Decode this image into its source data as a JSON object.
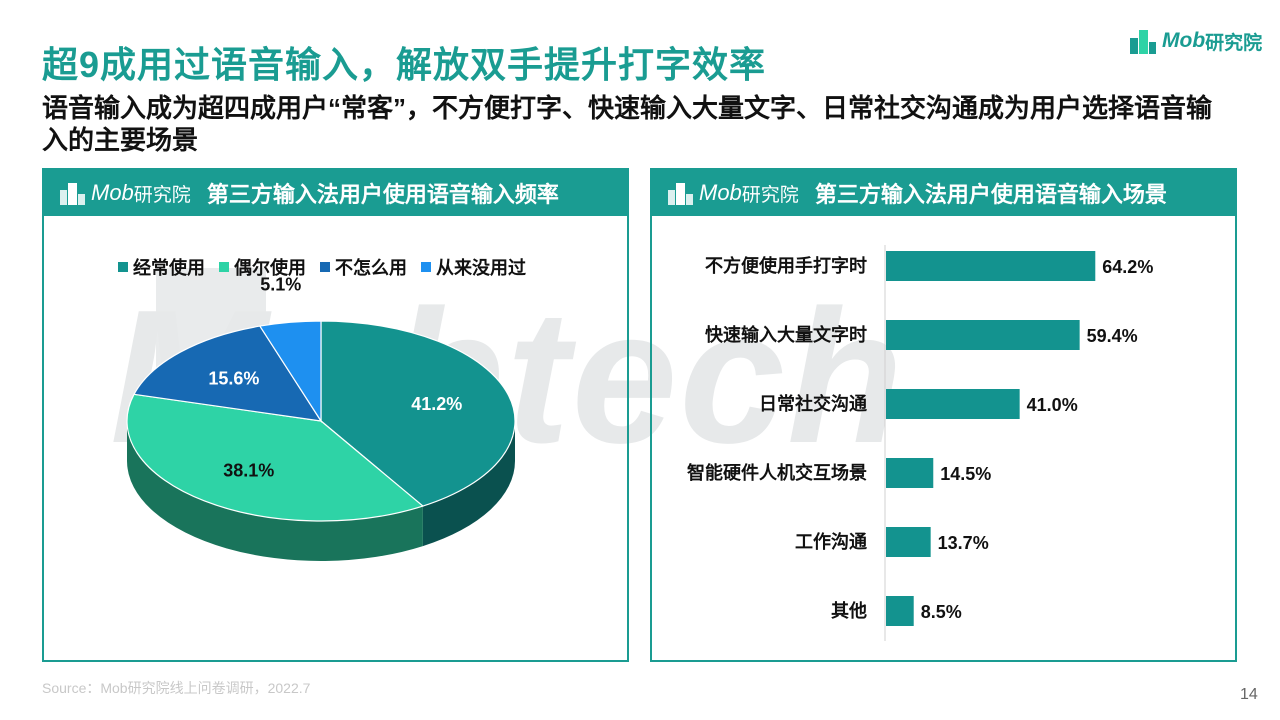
{
  "header": {
    "title": "超9成用过语音输入，解放双手提升打字效率",
    "subtitle": "语音输入成为超四成用户“常客”，不方便打字、快速输入大量文字、日常社交沟通成为用户选择语音输入的主要场景",
    "brand_en": "Mob",
    "brand_cn": "研究院"
  },
  "watermark": "Mobtech",
  "colors": {
    "accent": "#1a9c92",
    "often": "#13938f",
    "sometimes": "#2ed3a6",
    "rarely": "#1769b3",
    "never": "#1e90f0",
    "bar": "#13938f"
  },
  "panels": {
    "left": {
      "logo_en": "Mob",
      "logo_cn": "研究院",
      "title": "第三方输入法用户使用语音输入频率"
    },
    "right": {
      "logo_en": "Mob",
      "logo_cn": "研究院",
      "title": "第三方输入法用户使用语音输入场景"
    }
  },
  "chart_data": [
    {
      "type": "pie",
      "title": "第三方输入法用户使用语音输入频率",
      "legend_position": "top",
      "series": [
        {
          "name": "经常使用",
          "value": 41.2,
          "label": "41.2%"
        },
        {
          "name": "偶尔使用",
          "value": 38.1,
          "label": "38.1%"
        },
        {
          "name": "不怎么用",
          "value": 15.6,
          "label": "15.6%"
        },
        {
          "name": "从来没用过",
          "value": 5.1,
          "label": "5.1%"
        }
      ]
    },
    {
      "type": "bar",
      "orientation": "horizontal",
      "title": "第三方输入法用户使用语音输入场景",
      "categories": [
        "不方便使用手打字时",
        "快速输入大量文字时",
        "日常社交沟通",
        "智能硬件人机交互场景",
        "工作沟通",
        "其他"
      ],
      "values": [
        64.2,
        59.4,
        41.0,
        14.5,
        13.7,
        8.5
      ],
      "labels": [
        "64.2%",
        "59.4%",
        "41.0%",
        "14.5%",
        "13.7%",
        "8.5%"
      ],
      "xlim": [
        0,
        100
      ],
      "grid": false
    }
  ],
  "footer": {
    "source": "Source：Mob研究院线上问卷调研，2022.7",
    "page": "14"
  }
}
